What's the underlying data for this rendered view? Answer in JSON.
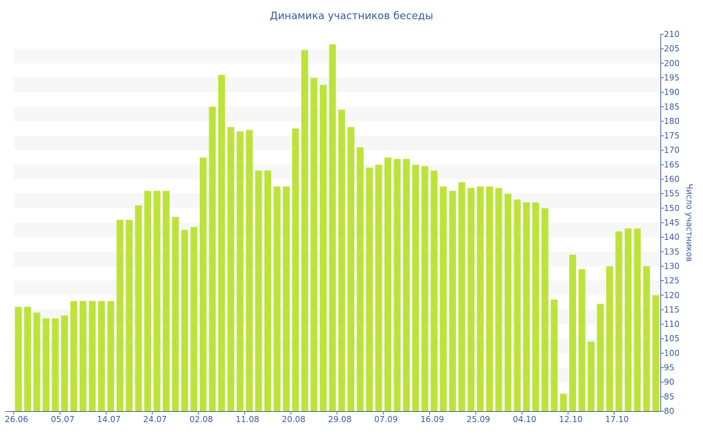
{
  "chart_data": {
    "type": "bar",
    "title": "Динамика участников беседы",
    "xlabel": "",
    "ylabel": "Число участников",
    "ylim": [
      80,
      210
    ],
    "y_ticks": [
      80,
      85,
      90,
      95,
      100,
      105,
      110,
      115,
      120,
      125,
      130,
      135,
      140,
      145,
      150,
      155,
      160,
      165,
      170,
      175,
      180,
      185,
      190,
      195,
      200,
      205,
      210
    ],
    "y_axis_position": "right",
    "x_tick_labels": [
      {
        "label": "26.06",
        "index": 0
      },
      {
        "label": "05.07",
        "index": 5
      },
      {
        "label": "14.07",
        "index": 10
      },
      {
        "label": "24.07",
        "index": 15
      },
      {
        "label": "02.08",
        "index": 20
      },
      {
        "label": "11.08",
        "index": 25
      },
      {
        "label": "20.08",
        "index": 30
      },
      {
        "label": "29.08",
        "index": 35
      },
      {
        "label": "07.09",
        "index": 40
      },
      {
        "label": "16.09",
        "index": 45
      },
      {
        "label": "25.09",
        "index": 50
      },
      {
        "label": "04.10",
        "index": 55
      },
      {
        "label": "12.10",
        "index": 60
      },
      {
        "label": "17.10",
        "index": 65
      }
    ],
    "values": [
      116,
      116,
      114,
      112,
      112,
      113,
      118,
      118,
      118,
      118,
      118,
      146,
      146,
      151,
      156,
      156,
      156,
      147,
      142.5,
      143.5,
      167.5,
      185,
      196,
      178,
      176.5,
      177,
      163,
      163,
      157.5,
      157.5,
      177.5,
      204.5,
      195,
      192.5,
      206.5,
      184,
      178,
      171,
      164,
      165,
      167.5,
      167,
      167,
      165,
      164.5,
      163,
      157.5,
      156,
      159,
      157,
      157.5,
      157.5,
      157,
      155,
      153,
      152,
      152,
      150,
      118.5,
      86,
      134,
      129,
      104,
      117,
      130,
      142,
      143,
      143,
      130,
      120
    ],
    "grid": "horizontal alternating bands",
    "legend": "none",
    "colors": {
      "bar": "#bde33a",
      "band": "#f7f7f7",
      "axis": "#3b5998",
      "text": "#3b5998"
    }
  }
}
